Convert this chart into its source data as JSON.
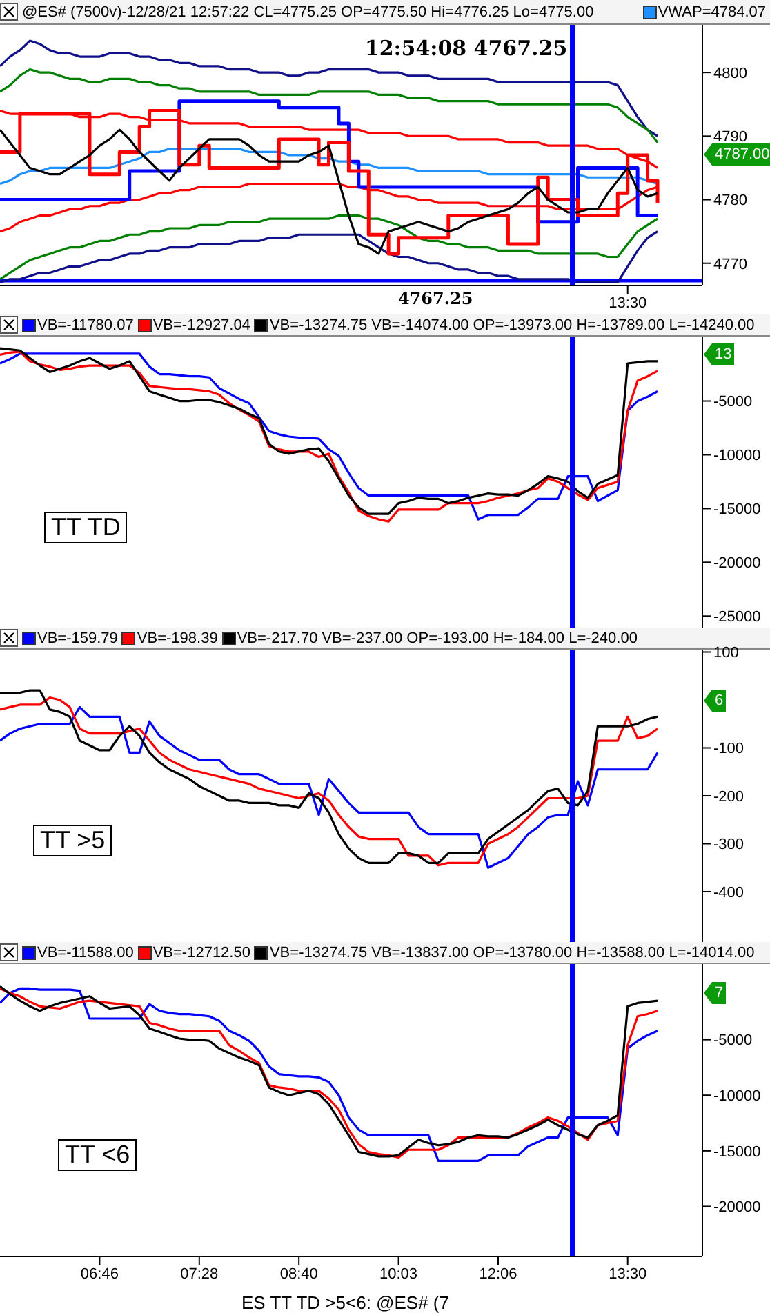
{
  "chart_data": [
    {
      "type": "line",
      "title": "@ES# (7500v)-12/28/21 12:57:22 CL=4775.25 OP=4775.50 Hi=4776.25 Lo=4775.00",
      "legend": "top right",
      "categories": [
        null,
        null,
        null,
        null,
        null,
        null,
        null,
        null,
        null,
        null,
        null,
        null,
        null,
        null,
        null,
        null,
        null,
        null,
        null,
        null,
        null,
        null,
        null,
        null,
        null,
        null,
        null,
        null,
        null,
        null,
        null,
        null,
        null,
        null,
        null,
        null,
        null,
        null,
        null,
        null,
        null,
        null,
        null,
        null,
        null,
        null,
        null,
        null,
        null,
        null,
        null,
        null,
        null,
        null,
        null,
        null,
        null,
        null,
        null,
        null,
        null,
        null,
        null,
        "13:30",
        null,
        null,
        null,
        null,
        null,
        null,
        null
      ],
      "ylim": [
        4766.5,
        4807.5
      ],
      "yticks": [
        4770,
        4780,
        4790,
        4800
      ],
      "series": [
        {
          "color": "#10108a",
          "values": [
            4801,
            4802.5,
            4803.5,
            4805,
            4804.5,
            4803.5,
            4803,
            4803,
            4802.5,
            4802.5,
            4802.5,
            4803,
            4803,
            4803,
            4802.5,
            4802.5,
            4802,
            4802,
            4801.5,
            4801.5,
            4801,
            4801,
            4801,
            4800.5,
            4800.5,
            4800.5,
            4800,
            4800,
            4800,
            4799.5,
            4799.5,
            4800,
            4800,
            4800.5,
            4800.5,
            4800.5,
            4800.5,
            4800.5,
            4800,
            4800,
            4800,
            4799.5,
            4799.5,
            4799.5,
            4799,
            4799,
            4799,
            4799,
            4799,
            4799,
            4798.5,
            4798.5,
            4798.5,
            4798.5,
            4798.5,
            4798.5,
            4798.5,
            4798.5,
            4798.5,
            4798.5,
            4798.5,
            4798.5,
            4798,
            4795.5,
            4793,
            4791,
            4790,
            null,
            null,
            null,
            null
          ]
        },
        {
          "color": "#008000",
          "values": [
            4797,
            4798,
            4799.5,
            4800.5,
            4800,
            4800,
            4799.5,
            4799,
            4799,
            4798.5,
            4798.5,
            4799,
            4799,
            4799,
            4798.5,
            4798.5,
            4798,
            4798,
            4797.5,
            4797.5,
            4797,
            4797,
            4797,
            4797,
            4797,
            4797,
            4796.5,
            4796.5,
            4796.5,
            4796.5,
            4796.5,
            4796.5,
            4797,
            4797,
            4797,
            4797,
            4797,
            4797,
            4796.5,
            4796.5,
            4796.5,
            4796,
            4796,
            4796,
            4795.5,
            4795.5,
            4795.5,
            4795.5,
            4795.5,
            4795.5,
            4795,
            4795,
            4795,
            4795,
            4795,
            4795,
            4795,
            4795,
            4795,
            4795,
            4795,
            4795,
            4794.5,
            4793,
            4792,
            4791,
            4789,
            null,
            null,
            null,
            null
          ]
        },
        {
          "color": "#ff0000",
          "values": [
            4794,
            4793.5,
            4793.5,
            4793.5,
            4793.5,
            4793.5,
            4793.5,
            4793.5,
            4793,
            4793,
            4793,
            4793.5,
            4793.5,
            4793,
            4793,
            4792.5,
            4792.5,
            4792.5,
            4792.5,
            4792,
            4792,
            4792,
            4792,
            4792,
            4792,
            4791.5,
            4791.5,
            4791.5,
            4791.5,
            4791.5,
            4791.5,
            4791,
            4791,
            4791,
            4791,
            4791,
            4791,
            4790.5,
            4790.5,
            4790.5,
            4790.5,
            4790,
            4790,
            4790,
            4790,
            4790,
            4789.5,
            4789.5,
            4789.5,
            4789.5,
            4789.5,
            4789,
            4789,
            4789,
            4789,
            4788.5,
            4788.5,
            4788.5,
            4788.5,
            4788.5,
            4788,
            4788,
            4788,
            4787,
            4786.5,
            4786,
            4785,
            null,
            null,
            null,
            null
          ]
        },
        {
          "name": "VWAP=4784.07",
          "color": "#1e90ff",
          "values": [
            4782.5,
            4783,
            4784,
            4784.5,
            4784.5,
            4785,
            4785,
            4785,
            4785,
            4785,
            4785,
            4785,
            4785.5,
            4786,
            4786.5,
            4787.5,
            4787.5,
            4788,
            4788,
            4788,
            4788,
            4788,
            4788,
            4788,
            4788,
            4787.5,
            4787.5,
            4787.5,
            4787.5,
            4787,
            4787,
            4787,
            4786.5,
            4786.5,
            4786,
            4786,
            4785.5,
            4785.5,
            4785,
            4785,
            4785,
            4785,
            4784.5,
            4784.5,
            4784.5,
            4784.5,
            4784.5,
            4784.5,
            4784.5,
            4784,
            4784,
            4784,
            4784,
            4784,
            4784,
            4784,
            4784,
            4784,
            4784,
            4783.5,
            4783.5,
            4783.5,
            4783.5,
            4783.5,
            4783.5,
            4783,
            4782.5,
            null,
            null,
            null,
            null
          ]
        },
        {
          "color": "#ff0000",
          "values": [
            4775,
            4775.5,
            4776.5,
            4777,
            4777.5,
            4777.5,
            4778,
            4778.5,
            4778.5,
            4779,
            4779,
            4779.5,
            4779.5,
            4780,
            4780,
            4780.5,
            4781,
            4781,
            4781.5,
            4781.5,
            4782,
            4782,
            4782,
            4782,
            4782,
            4782.5,
            4782.5,
            4782.5,
            4782.5,
            4782.5,
            4782.5,
            4782.5,
            4782.5,
            4782.5,
            4782.5,
            4782,
            4782,
            4781.5,
            4781.5,
            4781,
            4780.5,
            4780.5,
            4780,
            4780,
            4779.5,
            4779.5,
            4779.5,
            4779.5,
            4779.5,
            4779,
            4779,
            4779,
            4779,
            4779,
            4779,
            4779,
            4778.5,
            4778.5,
            4778.5,
            4778.5,
            4778.5,
            4778.5,
            4778.5,
            4779.5,
            4780.5,
            4781.5,
            4782,
            null,
            null,
            null,
            null
          ]
        },
        {
          "color": "#008000",
          "values": [
            4767.5,
            4768.5,
            4769.5,
            4770.5,
            4771,
            4771.5,
            4772,
            4772.5,
            4772.5,
            4773,
            4773.5,
            4773.5,
            4774,
            4774.5,
            4774.5,
            4775,
            4775,
            4775.5,
            4775.5,
            4775.5,
            4776,
            4776,
            4776,
            4776.5,
            4776.5,
            4776.5,
            4776.5,
            4777,
            4777,
            4777,
            4777,
            4777,
            4777,
            4777,
            4777.5,
            4777.5,
            4777.5,
            4777,
            4777,
            4776.5,
            4776,
            4775,
            4774,
            4773.5,
            4773.5,
            4773,
            4773,
            4772.5,
            4772.5,
            4772.5,
            4772,
            4772,
            4772,
            4772,
            4771.5,
            4771.5,
            4771.5,
            4771.5,
            4771.5,
            4771.5,
            4771.5,
            4771,
            4771,
            4773,
            4775,
            4776,
            4777,
            null,
            null,
            null,
            null
          ]
        },
        {
          "color": "#10108a",
          "values": [
            4767,
            4767.5,
            4767.5,
            4768,
            4768.5,
            4768.5,
            4769,
            4769.5,
            4769.5,
            4770,
            4770.5,
            4770.5,
            4771,
            4771.5,
            4771.5,
            4772,
            4772,
            4772.5,
            4772.5,
            4772.5,
            4773,
            4773,
            4773,
            4773,
            4773.5,
            4773.5,
            4773.5,
            4774,
            4774,
            4774,
            4774.5,
            4774.5,
            4774.5,
            4774.5,
            4774.5,
            4774.5,
            4774.5,
            4773.5,
            4772.5,
            4771.5,
            4771,
            4771,
            4770.5,
            4770,
            4770,
            4769.5,
            4769,
            4769,
            4768.5,
            4768.5,
            4768,
            4768,
            4767.5,
            4767.5,
            4767.5,
            4767.5,
            4767.5,
            4767.5,
            4767,
            4767,
            4767,
            4767,
            4767,
            4769.5,
            4772,
            4774,
            4775,
            null,
            null,
            null,
            null
          ]
        },
        {
          "type": "step",
          "color": "#0000ff",
          "values": [
            4780,
            4780,
            4780,
            4780,
            4780,
            4780,
            4780,
            4780,
            4780,
            4780,
            4780,
            4780,
            4780,
            4784.5,
            4784.5,
            4784.5,
            4784.5,
            4784.5,
            4795.5,
            4795.5,
            4795.5,
            4795.5,
            4795.5,
            4795.5,
            4795.5,
            4795.5,
            4795.5,
            4795.5,
            4794.5,
            4794.5,
            4794.5,
            4794.5,
            4794.5,
            4794.5,
            4792,
            4786,
            4782,
            4782,
            4782,
            4782,
            4782,
            4782,
            4782,
            4782,
            4782,
            4782,
            4782,
            4782,
            4782,
            4782,
            4782,
            4782,
            4782,
            4782,
            4776.5,
            4776.5,
            4776.5,
            4776.5,
            4785,
            4785,
            4785,
            4785,
            4785,
            4785,
            4777.5,
            4777.5,
            4777.5,
            null,
            null,
            null,
            null
          ]
        },
        {
          "type": "step",
          "color": "#ff0000",
          "values": [
            4787.5,
            4787.5,
            4793.5,
            4793.5,
            4793.5,
            4793.5,
            4793.5,
            4793.5,
            4793.5,
            4784,
            4784,
            4784,
            4787.5,
            4787.5,
            4791.5,
            4794,
            4794,
            4794,
            4785.5,
            4785.5,
            4788.5,
            4785,
            4785,
            4785,
            4785,
            4785,
            4785,
            4785,
            4789.5,
            4789.5,
            4789.5,
            4789.5,
            4785.5,
            4789,
            4789,
            4784.5,
            4784.5,
            4774.5,
            4774.5,
            4771.5,
            4774,
            4774,
            4774,
            4774,
            4774,
            4777.5,
            4777.5,
            4777.5,
            4777.5,
            4777.5,
            4777.5,
            4773,
            4773,
            4773,
            4783.5,
            4780,
            4780,
            4780,
            4777.5,
            4777.5,
            4777.5,
            4777.5,
            4781,
            4787,
            4787,
            4783,
            4779.5,
            null,
            null,
            null,
            null
          ]
        },
        {
          "color": "#000000",
          "values": [
            4791,
            4789,
            4787,
            4785,
            4784.5,
            4784,
            4784,
            4785,
            4786,
            4787,
            4788.5,
            4789.5,
            4791,
            4789.5,
            4787.5,
            4786,
            4784.5,
            4783,
            4785,
            4786.5,
            4788,
            4789.5,
            4789.5,
            4789.5,
            4789.5,
            4788.5,
            4787,
            4786,
            4786,
            4786,
            4786,
            4787,
            4787.5,
            4788.5,
            4783,
            4777.5,
            4773,
            4772.5,
            4771.5,
            4775,
            4775.5,
            4776,
            4776.5,
            4776,
            4775.5,
            4775,
            4775.5,
            4776.5,
            4777,
            4777.5,
            4778,
            4778.5,
            4779.5,
            4781,
            4782,
            4780,
            4779,
            4778,
            4778,
            4778.5,
            4778.5,
            4781,
            4783,
            4785,
            4781.5,
            4780.5,
            4781,
            null,
            null,
            null,
            null
          ]
        }
      ],
      "ref_lines": [
        {
          "axis": "y",
          "value": 4767.25,
          "label": "4767.25",
          "color": "#0000ff"
        }
      ],
      "annotations": [
        "12:54:08 4767.25",
        "4787.00"
      ]
    },
    {
      "type": "line",
      "title": "VB=-14074.00 OP=-13973.00 H=-13789.00 L=-14240.00",
      "legend": "top left",
      "tick_labels": "y",
      "categories": [
        null,
        null,
        null,
        null,
        null,
        null,
        null,
        null,
        null,
        null,
        null,
        null,
        null,
        null,
        null,
        null,
        null,
        null,
        null,
        null,
        null,
        null,
        null,
        null,
        null,
        null,
        null,
        null,
        null,
        null,
        null,
        null,
        null,
        null,
        null,
        null,
        null,
        null,
        null,
        null,
        null,
        null,
        null,
        null,
        null,
        null,
        null,
        null,
        null,
        null,
        null,
        null,
        null,
        null,
        null,
        null,
        null,
        null,
        null,
        null,
        null,
        null,
        null,
        null,
        null,
        null,
        null,
        null,
        null,
        null,
        null
      ],
      "ylim": [
        -26200,
        1000
      ],
      "yticks": [
        -5000,
        -10000,
        -15000,
        -20000,
        -25000
      ],
      "series": [
        {
          "name": "VB=-11780.07",
          "color": "#0000ff",
          "values": [
            -1500,
            -1100,
            -600,
            -600,
            -600,
            -600,
            -600,
            -600,
            -600,
            -600,
            -600,
            -600,
            -600,
            -600,
            -600,
            -1800,
            -2500,
            -2500,
            -2600,
            -2700,
            -2700,
            -2800,
            -3800,
            -4300,
            -4800,
            -5200,
            -6500,
            -7800,
            -8100,
            -8300,
            -8400,
            -8400,
            -8500,
            -9500,
            -10100,
            -11700,
            -13100,
            -13800,
            -13800,
            -13800,
            -13800,
            -13800,
            -13800,
            -13800,
            -13800,
            -13800,
            -13800,
            -13800,
            -16000,
            -15600,
            -15600,
            -15600,
            -15600,
            -14900,
            -14100,
            -14100,
            -14100,
            -12000,
            -12000,
            -12000,
            -14300,
            -13800,
            -13300,
            -5900,
            -5000,
            -4600,
            -4100,
            null,
            null,
            null,
            null
          ]
        },
        {
          "name": "VB=-12927.04",
          "color": "#ff0000",
          "values": [
            -700,
            -500,
            -400,
            -1300,
            -1600,
            -1800,
            -2100,
            -2000,
            -1800,
            -1700,
            -1700,
            -1700,
            -1700,
            -1700,
            -2400,
            -3600,
            -3700,
            -3800,
            -3900,
            -3900,
            -4000,
            -4100,
            -4400,
            -5200,
            -5800,
            -6300,
            -6900,
            -9200,
            -9500,
            -9700,
            -9700,
            -9700,
            -10200,
            -9900,
            -12000,
            -13500,
            -15200,
            -15700,
            -16000,
            -16200,
            -15100,
            -15100,
            -15100,
            -15100,
            -15100,
            -14500,
            -14500,
            -14500,
            -14500,
            -14300,
            -14000,
            -13800,
            -13600,
            -13300,
            -13100,
            -12200,
            -12500,
            -13100,
            -13700,
            -14200,
            -13100,
            -12800,
            -12500,
            -5900,
            -3100,
            -2700,
            -2200,
            null,
            null,
            null,
            null
          ]
        },
        {
          "name": "VB=-13274.75",
          "color": "#000000",
          "values": [
            -100,
            -200,
            -300,
            -1000,
            -1700,
            -2300,
            -2000,
            -1700,
            -1300,
            -1000,
            -1500,
            -2000,
            -1700,
            -1300,
            -2700,
            -4100,
            -4400,
            -4700,
            -5000,
            -5000,
            -4900,
            -4900,
            -5100,
            -5400,
            -5700,
            -6200,
            -6600,
            -9000,
            -9700,
            -9900,
            -9700,
            -9500,
            -9400,
            -10600,
            -12200,
            -13800,
            -14900,
            -15500,
            -15500,
            -15500,
            -14500,
            -14300,
            -14000,
            -14100,
            -14100,
            -14500,
            -14300,
            -14000,
            -13800,
            -13600,
            -13700,
            -13700,
            -13800,
            -13300,
            -12700,
            -12000,
            -12200,
            -12500,
            -13400,
            -14000,
            -12700,
            -12300,
            -11900,
            -1500,
            -1400,
            -1300,
            -1300,
            null,
            null,
            null,
            null
          ]
        }
      ],
      "annotations": [
        "TT TD",
        "13"
      ]
    },
    {
      "type": "line",
      "title": "VB=-237.00 OP=-193.00 H=-184.00 L=-240.00",
      "legend": "top left",
      "tick_labels": "y",
      "categories": [
        null,
        null,
        null,
        null,
        null,
        null,
        null,
        null,
        null,
        null,
        null,
        null,
        null,
        null,
        null,
        null,
        null,
        null,
        null,
        null,
        null,
        null,
        null,
        null,
        null,
        null,
        null,
        null,
        null,
        null,
        null,
        null,
        null,
        null,
        null,
        null,
        null,
        null,
        null,
        null,
        null,
        null,
        null,
        null,
        null,
        null,
        null,
        null,
        null,
        null,
        null,
        null,
        null,
        null,
        null,
        null,
        null,
        null,
        null,
        null,
        null,
        null,
        null,
        null,
        null,
        null,
        null,
        null,
        null,
        null,
        null
      ],
      "ylim": [
        -505,
        105
      ],
      "yticks": [
        100,
        -100,
        -200,
        -300,
        -400
      ],
      "series": [
        {
          "name": "VB=-159.79",
          "color": "#0000ff",
          "values": [
            -85,
            -70,
            -60,
            -55,
            -50,
            -50,
            -50,
            -50,
            -15,
            -35,
            -35,
            -35,
            -35,
            -110,
            -110,
            -45,
            -75,
            -90,
            -105,
            -115,
            -125,
            -125,
            -125,
            -145,
            -155,
            -155,
            -155,
            -165,
            -175,
            -175,
            -175,
            -175,
            -240,
            -165,
            -190,
            -215,
            -235,
            -235,
            -235,
            -235,
            -235,
            -235,
            -265,
            -280,
            -280,
            -280,
            -280,
            -280,
            -280,
            -350,
            -340,
            -330,
            -305,
            -280,
            -265,
            -245,
            -240,
            -240,
            -170,
            -220,
            -145,
            -145,
            -145,
            -145,
            -145,
            -145,
            -110,
            null,
            null,
            null,
            null
          ]
        },
        {
          "name": "VB=-198.39",
          "color": "#ff0000",
          "values": [
            -20,
            -15,
            -10,
            -10,
            -10,
            5,
            0,
            -15,
            -60,
            -70,
            -70,
            -70,
            -70,
            -65,
            -60,
            -85,
            -110,
            -125,
            -135,
            -145,
            -150,
            -155,
            -160,
            -165,
            -170,
            -175,
            -185,
            -190,
            -195,
            -200,
            -205,
            -200,
            -195,
            -210,
            -240,
            -265,
            -285,
            -290,
            -290,
            -290,
            -290,
            -325,
            -325,
            -325,
            -345,
            -340,
            -340,
            -340,
            -340,
            -300,
            -290,
            -280,
            -265,
            -245,
            -225,
            -205,
            -205,
            -205,
            -205,
            -200,
            -85,
            -85,
            -85,
            -35,
            -80,
            -75,
            -60,
            null,
            null,
            null,
            null
          ]
        },
        {
          "name": "VB=-217.70",
          "color": "#000000",
          "values": [
            15,
            15,
            15,
            20,
            20,
            -20,
            -25,
            -35,
            -85,
            -95,
            -105,
            -105,
            -75,
            -55,
            -75,
            -110,
            -130,
            -145,
            -155,
            -165,
            -180,
            -190,
            -200,
            -210,
            -210,
            -215,
            -215,
            -215,
            -220,
            -220,
            -225,
            -195,
            -205,
            -235,
            -280,
            -310,
            -330,
            -340,
            -340,
            -340,
            -320,
            -320,
            -325,
            -340,
            -340,
            -320,
            -320,
            -320,
            -320,
            -290,
            -275,
            -260,
            -245,
            -230,
            -210,
            -190,
            -185,
            -215,
            -220,
            -190,
            -55,
            -55,
            -55,
            -55,
            -50,
            -40,
            -35,
            null,
            null,
            null,
            null
          ]
        }
      ],
      "annotations": [
        "TT >5",
        "6"
      ]
    },
    {
      "type": "line",
      "title": "VB=-13837.00 OP=-13780.00 H=-13588.00 L=-14014.00",
      "legend": "top left",
      "categories": [
        null,
        null,
        null,
        null,
        null,
        null,
        null,
        null,
        null,
        null,
        "06:46",
        null,
        null,
        null,
        null,
        null,
        null,
        null,
        null,
        null,
        "07:28",
        null,
        null,
        null,
        null,
        null,
        null,
        null,
        null,
        null,
        "08:40",
        null,
        null,
        null,
        null,
        null,
        null,
        null,
        null,
        null,
        "10:03",
        null,
        null,
        null,
        null,
        null,
        null,
        null,
        null,
        null,
        "12:06",
        null,
        null,
        null,
        null,
        null,
        null,
        null,
        null,
        null,
        null,
        null,
        null,
        "13:30",
        null,
        null,
        null,
        null,
        null,
        null,
        null
      ],
      "ylim": [
        -24500,
        1800
      ],
      "yticks": [
        -5000,
        -10000,
        -15000,
        -20000
      ],
      "series": [
        {
          "name": "VB=-11588.00",
          "color": "#0000ff",
          "values": [
            -1700,
            -800,
            -400,
            -400,
            -500,
            -500,
            -500,
            -500,
            -600,
            -3100,
            -3100,
            -3100,
            -3100,
            -3100,
            -3100,
            -1800,
            -2400,
            -2600,
            -2700,
            -2700,
            -2800,
            -2900,
            -3300,
            -4200,
            -4600,
            -5100,
            -6000,
            -7400,
            -8100,
            -8200,
            -8300,
            -8300,
            -8400,
            -8800,
            -10000,
            -12000,
            -13100,
            -13600,
            -13600,
            -13600,
            -13600,
            -13600,
            -13600,
            -13600,
            -15900,
            -15900,
            -15900,
            -15900,
            -15900,
            -15400,
            -15400,
            -15400,
            -15400,
            -14600,
            -14200,
            -13800,
            -13800,
            -12000,
            -12000,
            -12000,
            -12000,
            -12000,
            -13600,
            -5800,
            -5100,
            -4600,
            -4200,
            null,
            null,
            null,
            null
          ]
        },
        {
          "name": "VB=-12712.50",
          "color": "#ff0000",
          "values": [
            -400,
            -800,
            -1100,
            -1600,
            -2000,
            -2100,
            -2200,
            -1900,
            -1600,
            -1500,
            -1600,
            -1700,
            -1800,
            -1900,
            -2000,
            -3500,
            -3700,
            -4000,
            -4200,
            -4200,
            -4200,
            -4200,
            -4200,
            -5500,
            -6000,
            -6600,
            -7100,
            -9100,
            -9300,
            -9400,
            -9600,
            -9600,
            -9600,
            -10300,
            -11300,
            -13100,
            -14400,
            -15100,
            -15300,
            -15400,
            -15600,
            -14900,
            -14900,
            -14900,
            -14900,
            -14500,
            -13800,
            -13800,
            -13800,
            -13800,
            -13800,
            -13800,
            -13400,
            -12900,
            -12500,
            -12000,
            -12300,
            -12800,
            -13400,
            -14000,
            -12700,
            -12500,
            -12300,
            -5500,
            -2900,
            -2700,
            -2400,
            null,
            null,
            null,
            null
          ]
        },
        {
          "name": "VB=-13274.75",
          "color": "#000000",
          "values": [
            -200,
            -900,
            -1500,
            -2000,
            -2400,
            -2000,
            -1700,
            -1500,
            -1300,
            -1100,
            -1700,
            -2200,
            -2100,
            -2000,
            -2800,
            -4000,
            -4300,
            -4600,
            -4900,
            -5000,
            -5000,
            -5100,
            -5800,
            -6200,
            -6600,
            -6900,
            -7300,
            -9300,
            -9700,
            -10000,
            -9800,
            -9600,
            -9900,
            -10800,
            -12200,
            -13600,
            -15100,
            -15300,
            -15500,
            -15500,
            -15400,
            -14700,
            -14000,
            -14300,
            -14500,
            -14400,
            -14200,
            -13800,
            -13600,
            -13700,
            -13700,
            -13800,
            -13500,
            -13100,
            -12700,
            -12200,
            -12700,
            -13100,
            -13500,
            -13800,
            -12700,
            -12300,
            -11800,
            -2000,
            -1700,
            -1600,
            -1500,
            null,
            null,
            null,
            null
          ]
        }
      ],
      "annotations": [
        "TT <6",
        "7",
        "ES TT TD >5<6: @ES# (7"
      ]
    }
  ]
}
